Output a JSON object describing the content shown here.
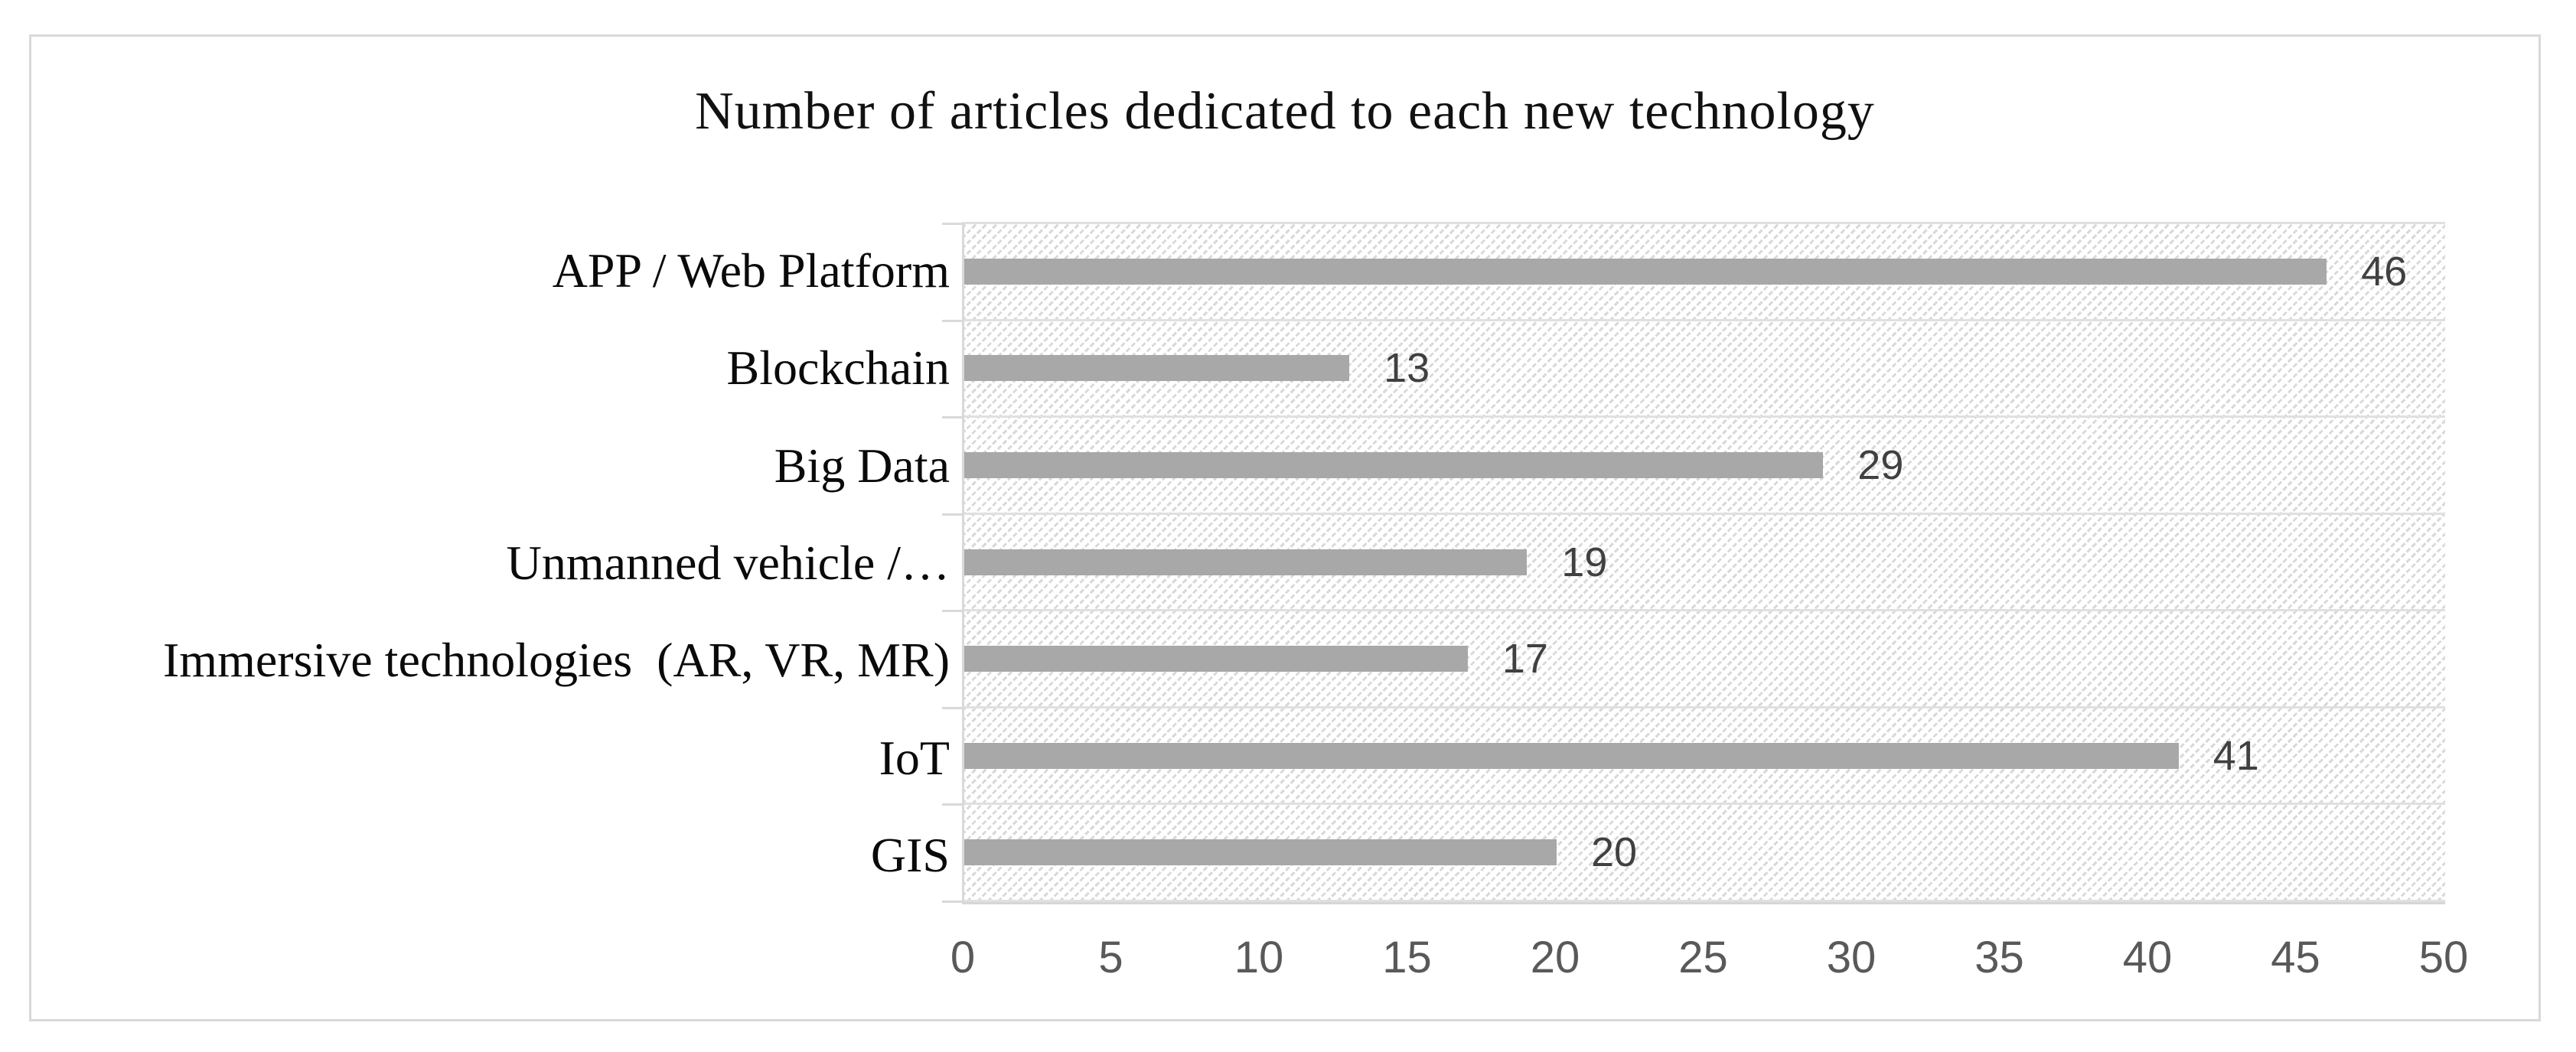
{
  "chart_data": {
    "type": "bar",
    "orientation": "horizontal",
    "title": "Number of articles dedicated to each new technology",
    "categories": [
      "APP / Web Platform",
      "Blockchain",
      "Big Data",
      "Unmanned vehicle /…",
      "Immersive technologies  (AR, VR, MR)",
      "IoT",
      "GIS"
    ],
    "values": [
      46,
      13,
      29,
      19,
      17,
      41,
      20
    ],
    "data_labels": [
      "46",
      "13",
      "29",
      "19",
      "17",
      "41",
      "20"
    ],
    "xlabel": "",
    "ylabel": "",
    "xlim": [
      0,
      50
    ],
    "x_ticks": [
      "0",
      "5",
      "10",
      "15",
      "20",
      "25",
      "30",
      "35",
      "40",
      "45",
      "50"
    ],
    "grid": "horizontal category separators only",
    "legend": "none",
    "plot_fill": "light downward-diagonal dotted hatch",
    "colors": {
      "bar": "#a8a8a8",
      "hatch_dot": "#d9d9d9",
      "gridline": "#e0e0e0",
      "axis_line": "#d9d9d9",
      "figure_border": "#d9d9d9",
      "title_text": "#111111",
      "category_text": "#0a0a0a",
      "value_label_text": "#404040",
      "tick_label_text": "#595959",
      "background": "#ffffff"
    }
  }
}
